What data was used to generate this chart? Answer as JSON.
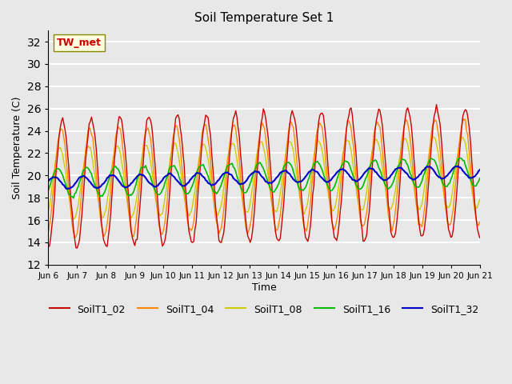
{
  "title": "Soil Temperature Set 1",
  "ylabel": "Soil Temperature (C)",
  "xlabel": "Time",
  "annotation": "TW_met",
  "ylim": [
    12,
    33
  ],
  "yticks": [
    12,
    14,
    16,
    18,
    20,
    22,
    24,
    26,
    28,
    30,
    32
  ],
  "series_colors": {
    "SoilT1_02": "#cc0000",
    "SoilT1_04": "#ff8800",
    "SoilT1_08": "#cccc00",
    "SoilT1_16": "#00bb00",
    "SoilT1_32": "#0000cc"
  },
  "bg_color": "#e8e8e8",
  "axes_bg_color": "#e8e8e8",
  "grid_color": "#ffffff",
  "x_tick_labels": [
    "Jun 6",
    "Jun 7",
    "Jun 8",
    "Jun 9",
    "Jun 10",
    "Jun 11",
    "Jun 12",
    "Jun 13",
    "Jun 14",
    "Jun 15",
    "Jun 16",
    "Jun 17",
    "Jun 18",
    "Jun 19",
    "Jun 20",
    "Jun 21"
  ],
  "n_days": 15,
  "base_mean": 19.3,
  "trend": 0.07,
  "amp_02": 5.8,
  "amp_04": 4.8,
  "amp_08": 3.2,
  "amp_16": 1.3,
  "amp_32": 0.55,
  "phase_02": 0.0,
  "phase_04": 0.35,
  "phase_08": 0.65,
  "phase_16": 1.05,
  "phase_32": 1.85
}
